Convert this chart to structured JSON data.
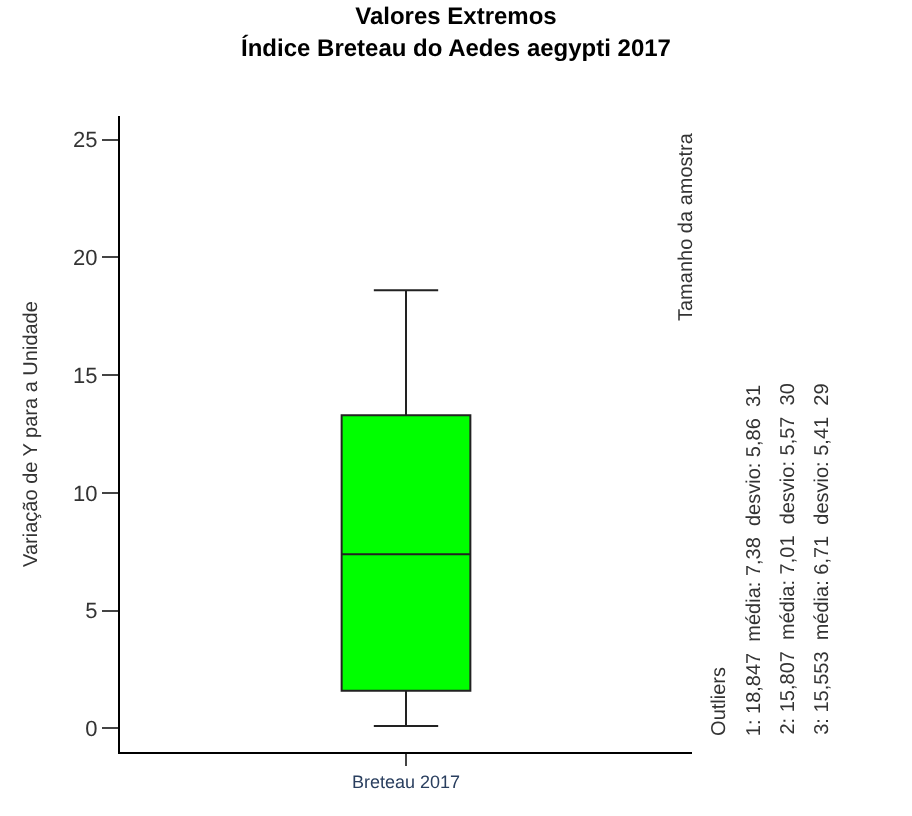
{
  "chart_data": {
    "type": "box",
    "title": "Valores Extremos",
    "subtitle": "Índice Breteau do Aedes aegypti 2017",
    "ylabel": "Variação de Y para a Unidade",
    "categories": [
      "Breteau 2017"
    ],
    "series": [
      {
        "color": "#00ff00",
        "boxes": [
          {
            "low": 0.1,
            "q1": 1.6,
            "median": 7.4,
            "q3": 13.3,
            "high": 18.6
          }
        ]
      }
    ],
    "ylim": [
      -1,
      26
    ],
    "yticks": [
      0,
      5,
      10,
      15,
      20,
      25
    ],
    "legend": false,
    "annotations": [
      "Tamanho da amostra",
      "Outliers",
      "1: 18,847  média: 7,38  desvio: 5,86  31",
      "2: 15,807  média: 7,01  desvio: 5,57  30",
      "3: 15,553  média: 6,71  desvio: 5,41  29"
    ]
  }
}
